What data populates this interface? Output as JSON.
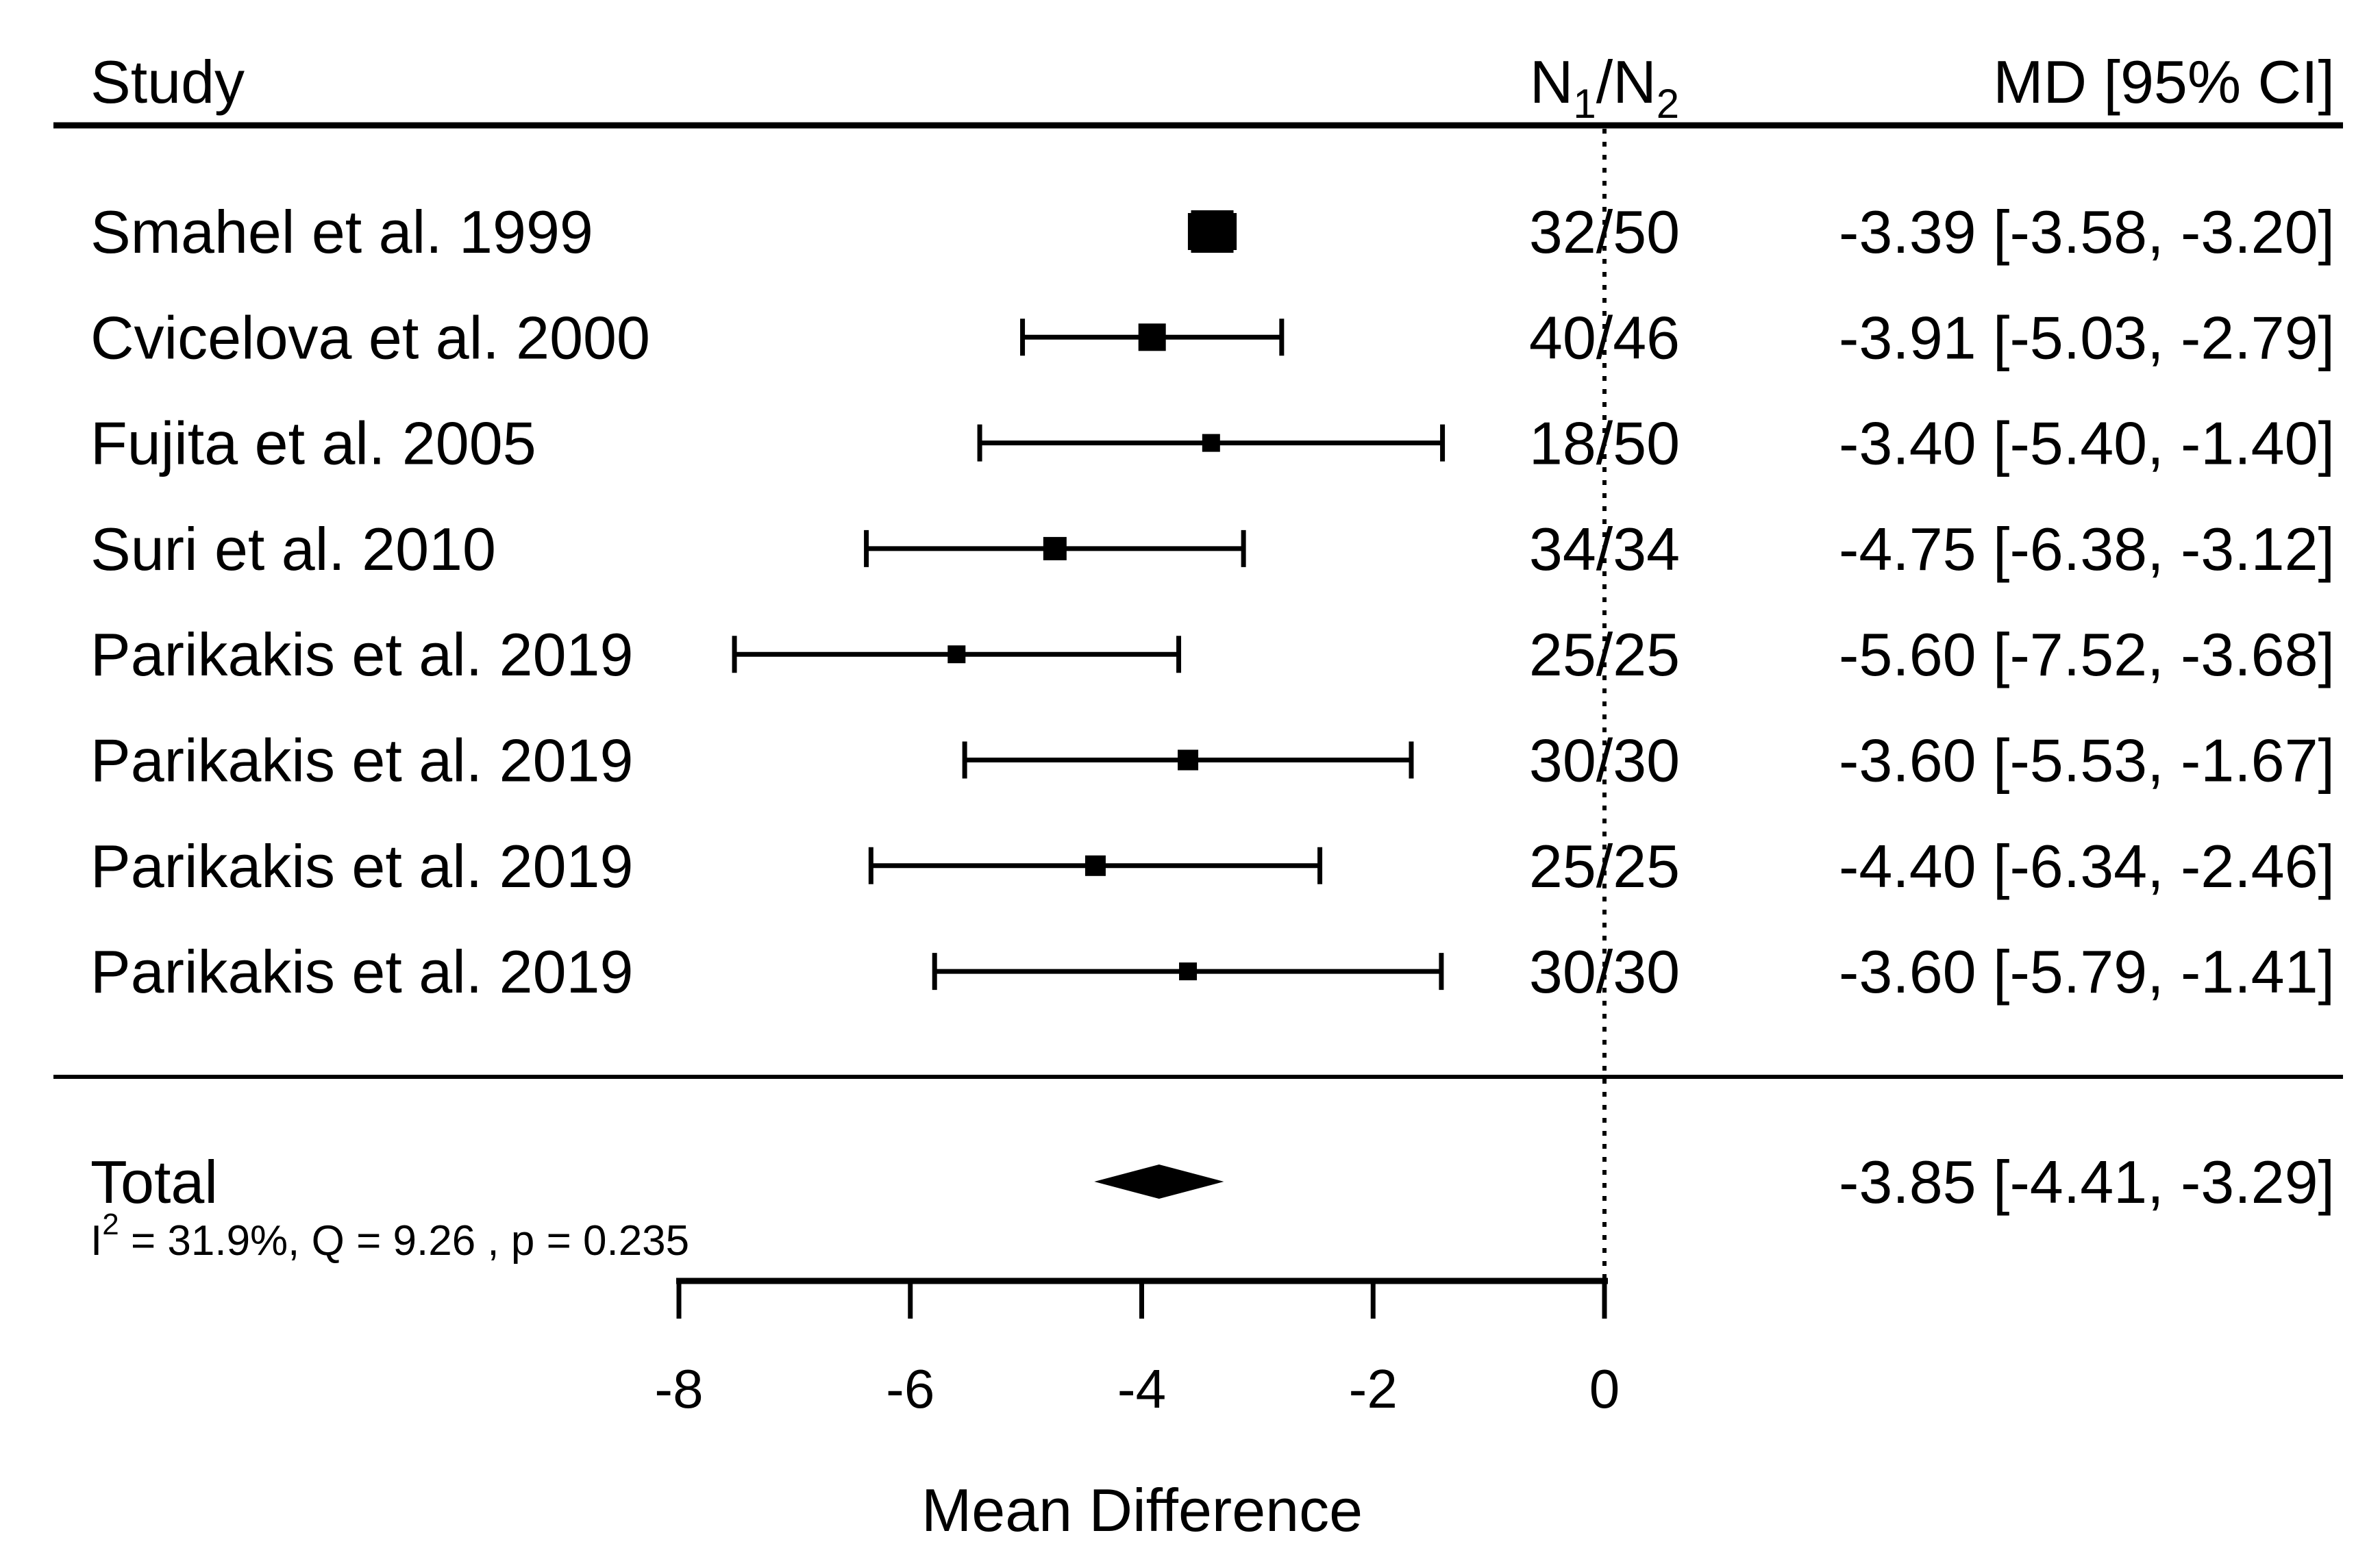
{
  "figure": {
    "background_color": "#ffffff",
    "foreground_color": "#000000"
  },
  "chart_data": {
    "type": "forest",
    "title": "",
    "xlabel": "Mean Difference",
    "ylabel": "",
    "x_ticks": [
      -8,
      -6,
      -4,
      -2,
      0
    ],
    "x_range": [
      -8,
      0
    ],
    "reference_line_x": 0,
    "grid": false,
    "columns": {
      "study": "Study",
      "n_parts": {
        "base1": "N",
        "sub1": "1",
        "base2": "/N",
        "sub2": "2"
      },
      "md": "MD [95% CI]"
    },
    "studies": [
      {
        "label": "Smahel et al. 1999",
        "n": "32/50",
        "md": -3.39,
        "ci_lower": -3.58,
        "ci_upper": -3.2,
        "md_text": "-3.39 [-3.58, -3.20]",
        "marker_px": 62
      },
      {
        "label": "Cvicelova et al. 2000",
        "n": "40/46",
        "md": -3.91,
        "ci_lower": -5.03,
        "ci_upper": -2.79,
        "md_text": "-3.91 [-5.03, -2.79]",
        "marker_px": 40
      },
      {
        "label": "Fujita et al. 2005",
        "n": "18/50",
        "md": -3.4,
        "ci_lower": -5.4,
        "ci_upper": -1.4,
        "md_text": "-3.40 [-5.40, -1.40]",
        "marker_px": 26
      },
      {
        "label": "Suri et al. 2010",
        "n": "34/34",
        "md": -4.75,
        "ci_lower": -6.38,
        "ci_upper": -3.12,
        "md_text": "-4.75 [-6.38, -3.12]",
        "marker_px": 34
      },
      {
        "label": "Parikakis et al. 2019",
        "n": "25/25",
        "md": -5.6,
        "ci_lower": -7.52,
        "ci_upper": -3.68,
        "md_text": "-5.60 [-7.52, -3.68]",
        "marker_px": 26
      },
      {
        "label": "Parikakis et al. 2019",
        "n": "30/30",
        "md": -3.6,
        "ci_lower": -5.53,
        "ci_upper": -1.67,
        "md_text": "-3.60 [-5.53, -1.67]",
        "marker_px": 30
      },
      {
        "label": "Parikakis et al. 2019",
        "n": "25/25",
        "md": -4.4,
        "ci_lower": -6.34,
        "ci_upper": -2.46,
        "md_text": "-4.40 [-6.34, -2.46]",
        "marker_px": 30
      },
      {
        "label": "Parikakis et al. 2019",
        "n": "30/30",
        "md": -3.6,
        "ci_lower": -5.79,
        "ci_upper": -1.41,
        "md_text": "-3.60 [-5.79, -1.41]",
        "marker_px": 26
      }
    ],
    "total": {
      "label": "Total",
      "md": -3.85,
      "ci_lower": -4.41,
      "ci_upper": -3.29,
      "md_text": "-3.85 [-4.41, -3.29]"
    },
    "heterogeneity": {
      "stat_base": "I",
      "stat_sup": "2",
      "text": " = 31.9%, Q = 9.26 , p  = 0.235"
    }
  }
}
